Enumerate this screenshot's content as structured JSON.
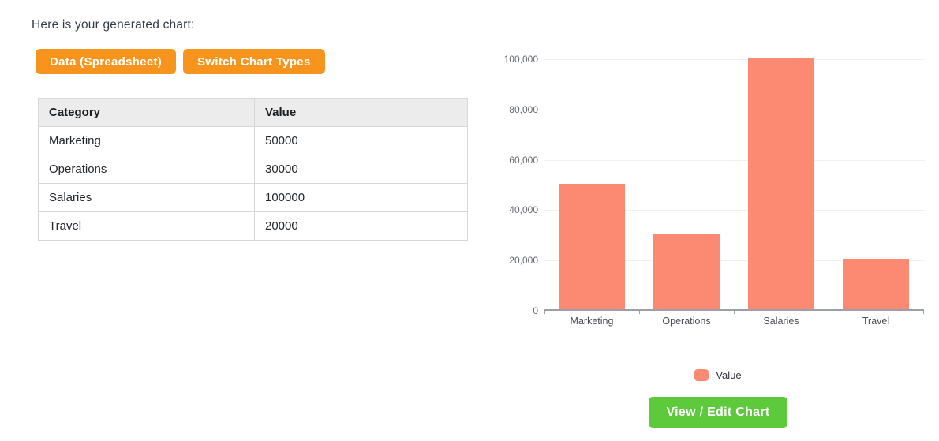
{
  "page": {
    "heading": "Here is your generated chart:"
  },
  "toolbar": {
    "data_spreadsheet_label": "Data (Spreadsheet)",
    "switch_chart_types_label": "Switch Chart Types"
  },
  "table": {
    "columns": [
      "Category",
      "Value"
    ],
    "rows": [
      [
        "Marketing",
        "50000"
      ],
      [
        "Operations",
        "30000"
      ],
      [
        "Salaries",
        "100000"
      ],
      [
        "Travel",
        "20000"
      ]
    ]
  },
  "chart_data": {
    "type": "bar",
    "title": "",
    "categories": [
      "Marketing",
      "Operations",
      "Salaries",
      "Travel"
    ],
    "series": [
      {
        "name": "Value",
        "values": [
          50000,
          30000,
          100000,
          20000
        ]
      }
    ],
    "ylim": [
      0,
      100000
    ],
    "ytick_interval": 20000,
    "ytick_labels": [
      "0",
      "20,000",
      "40,000",
      "60,000",
      "80,000",
      "100,000"
    ],
    "grid": true,
    "legend_position": "bottom",
    "bar_color": "#fc8a72"
  },
  "actions": {
    "view_edit_chart_label": "View / Edit Chart"
  },
  "colors": {
    "button_orange": "#f7941e",
    "bar_salmon": "#fc8a72",
    "button_green": "#5dca3c",
    "table_header_bg": "#ececec",
    "gridline": "#f0f0f0",
    "axis_line": "#9aa0a6"
  }
}
